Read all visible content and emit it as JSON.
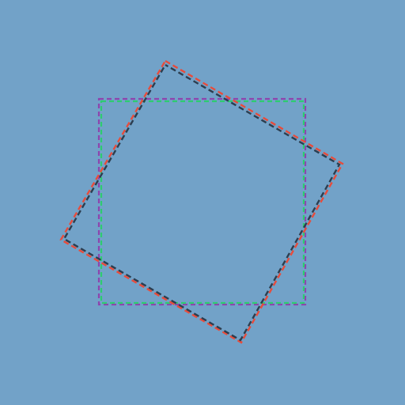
{
  "scene": {
    "background": "#72a2c8",
    "shapes": [
      {
        "id": "outer-square-purple",
        "type": "square",
        "rotation_deg": 0,
        "stroke": "#8e44ad",
        "dashed": true
      },
      {
        "id": "inner-square-green",
        "type": "square",
        "rotation_deg": 0,
        "stroke": "#2ecc71",
        "dashed": true
      },
      {
        "id": "rotated-square-orange",
        "type": "square",
        "rotation_deg": 28,
        "stroke": "#e74c3c",
        "dashed": true
      },
      {
        "id": "rotated-square-navy",
        "type": "square",
        "rotation_deg": 28,
        "stroke": "#2c3e50",
        "dashed": true
      }
    ]
  }
}
